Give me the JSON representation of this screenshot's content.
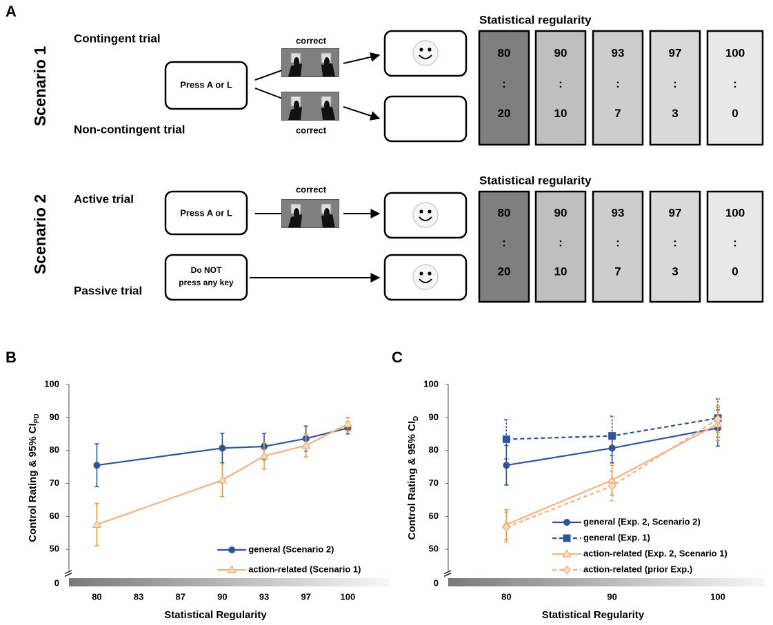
{
  "panel_a": {
    "label": "A",
    "scenarios": [
      {
        "title": "Scenario 1",
        "trial_top": "Contingent trial",
        "trial_bottom": "Non-contingent trial",
        "prompt_top": "Press A or L",
        "correct": [
          "correct",
          "correct"
        ],
        "regularity_title": "Statistical regularity",
        "separator": ":",
        "ratios": [
          [
            80,
            20
          ],
          [
            90,
            10
          ],
          [
            93,
            7
          ],
          [
            97,
            3
          ],
          [
            100,
            0
          ]
        ]
      },
      {
        "title": "Scenario 2",
        "trial_top": "Active trial",
        "trial_bottom": "Passive trial",
        "prompt_top": "Press A or L",
        "prompt_bottom": [
          "Do NOT",
          "press any key"
        ],
        "correct": [
          "correct"
        ],
        "regularity_title": "Statistical regularity",
        "separator": ":",
        "ratios": [
          [
            80,
            20
          ],
          [
            90,
            10
          ],
          [
            93,
            7
          ],
          [
            97,
            3
          ],
          [
            100,
            0
          ]
        ]
      }
    ]
  },
  "chart_data": [
    {
      "type": "line",
      "panel_label": "B",
      "ylabel": "Control Rating & 95% CI",
      "ylabel_sub": "PD",
      "xlabel": "Statistical Regularity",
      "x": [
        80,
        90,
        93,
        97,
        100
      ],
      "xlim": [
        78,
        103
      ],
      "xticks": [
        80,
        83,
        87,
        90,
        93,
        97,
        100
      ],
      "ylim": [
        40,
        100
      ],
      "yticks": [
        50,
        60,
        70,
        80,
        90,
        100
      ],
      "y_break_label": "0",
      "legend": "lower right",
      "series": [
        {
          "name": "general (Scenario 2)",
          "color": "#2f5597",
          "error_color": "#2f5597",
          "marker": "circle",
          "dash": false,
          "values": [
            75.5,
            80.7,
            81.2,
            83.6,
            86.8
          ],
          "errors": [
            6.5,
            4.5,
            4,
            3.8,
            1.8
          ]
        },
        {
          "name": "action-related (Scenario 1)",
          "color": "#f4b183",
          "error_color": "#e39a45",
          "marker": "triangle",
          "dash": false,
          "values": [
            57.5,
            71,
            78.3,
            81.5,
            88
          ],
          "errors": [
            6.4,
            5,
            4,
            3.5,
            2
          ]
        }
      ]
    },
    {
      "type": "line",
      "panel_label": "C",
      "ylabel": "Control Rating & 95% CI",
      "ylabel_sub": "D",
      "xlabel": "Statistical Regularity",
      "x": [
        80,
        90,
        100
      ],
      "xlim": [
        74.5,
        104.5
      ],
      "xticks": [
        80,
        90,
        100
      ],
      "ylim": [
        40,
        100
      ],
      "yticks": [
        50,
        60,
        70,
        80,
        90,
        100
      ],
      "y_break_label": "0",
      "legend": "lower right",
      "series": [
        {
          "name": "general (Exp. 2, Scenario 2)",
          "color": "#2f5597",
          "error_color": "#2f5597",
          "marker": "circle",
          "dash": false,
          "values": [
            75.5,
            80.7,
            86.8
          ],
          "errors": [
            6,
            4.5,
            5.5
          ]
        },
        {
          "name": "general (Exp. 1)",
          "color": "#2f5597",
          "error_color": "#2f5597",
          "marker": "square",
          "dash": true,
          "values": [
            83.4,
            84.4,
            89.8
          ],
          "errors": [
            6,
            6,
            5.8
          ]
        },
        {
          "name": "action-related (Exp. 2, Scenario 1)",
          "color": "#f4b183",
          "error_color": "#e39a45",
          "marker": "triangle",
          "dash": false,
          "values": [
            57.5,
            71,
            88
          ],
          "errors": [
            4.5,
            4.5,
            5
          ]
        },
        {
          "name": "action-related (prior Exp.)",
          "color": "#f4b183",
          "error_color": "#e39a45",
          "marker": "diamond",
          "dash": true,
          "values": [
            56.7,
            69.2,
            89.5
          ],
          "errors": [
            4.5,
            4.5,
            4
          ]
        }
      ]
    }
  ]
}
